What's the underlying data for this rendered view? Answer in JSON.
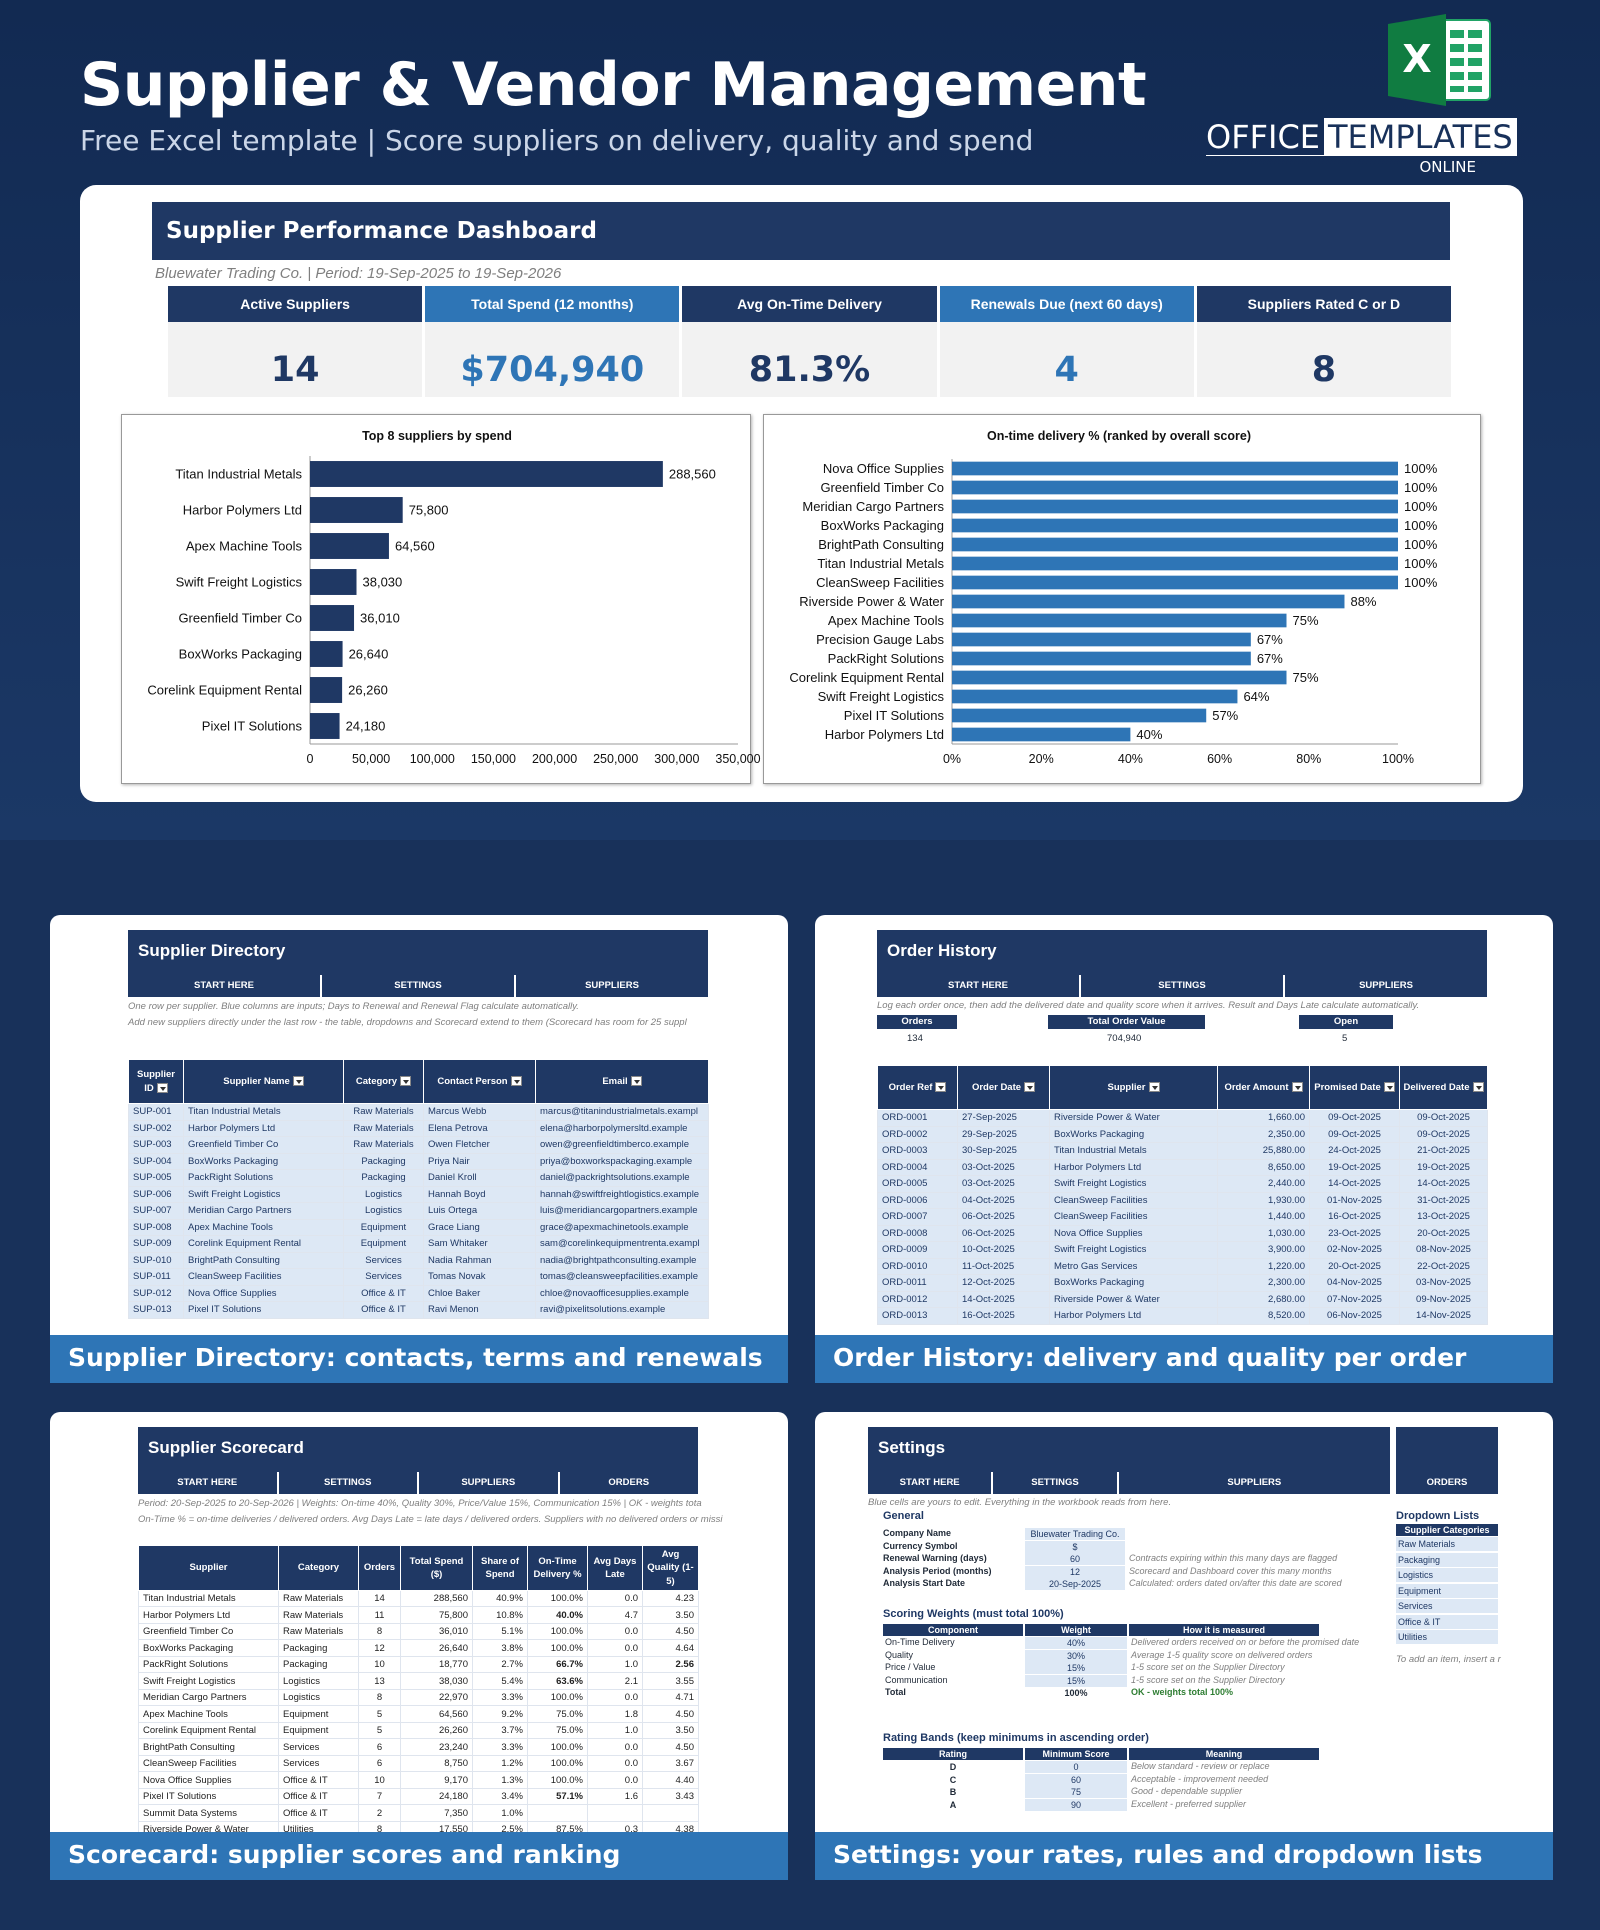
{
  "header": {
    "title": "Supplier & Vendor Management",
    "subtitle": "Free Excel template  |  Score suppliers on delivery, quality and spend",
    "logo_word1": "OFFICE",
    "logo_word2": "TEMPLATES",
    "logo_online": "ONLINE"
  },
  "dashboard": {
    "title": "Supplier Performance Dashboard",
    "subtitle": "Bluewater Trading Co.  |  Period: 19-Sep-2025 to 19-Sep-2026",
    "kpis": [
      {
        "label": "Active Suppliers",
        "value": "14"
      },
      {
        "label": "Total Spend (12 months)",
        "value": "$704,940"
      },
      {
        "label": "Avg On-Time Delivery",
        "value": "81.3%"
      },
      {
        "label": "Renewals Due (next 60 days)",
        "value": "4"
      },
      {
        "label": "Suppliers Rated C or D",
        "value": "8"
      }
    ]
  },
  "chart_data": [
    {
      "type": "bar",
      "orientation": "horizontal",
      "title": "Top 8 suppliers by spend",
      "categories": [
        "Titan Industrial Metals",
        "Harbor Polymers Ltd",
        "Apex Machine Tools",
        "Swift Freight Logistics",
        "Greenfield Timber Co",
        "BoxWorks Packaging",
        "Corelink Equipment Rental",
        "Pixel IT Solutions"
      ],
      "values": [
        288560,
        75800,
        64560,
        38030,
        36010,
        26640,
        26260,
        24180
      ],
      "value_labels": [
        "288,560",
        "75,800",
        "64,560",
        "38,030",
        "36,010",
        "26,640",
        "26,260",
        "24,180"
      ],
      "xlim": [
        0,
        350000
      ],
      "x_ticks": [
        "0",
        "50,000",
        "100,000",
        "150,000",
        "200,000",
        "250,000",
        "300,000",
        "350,000"
      ],
      "bar_color": "#1f3864",
      "grid": false
    },
    {
      "type": "bar",
      "orientation": "horizontal",
      "title": "On-time delivery % (ranked by overall score)",
      "categories": [
        "Nova Office Supplies",
        "Greenfield Timber Co",
        "Meridian Cargo Partners",
        "BoxWorks Packaging",
        "BrightPath Consulting",
        "Titan Industrial Metals",
        "CleanSweep Facilities",
        "Riverside Power & Water",
        "Apex Machine Tools",
        "Precision Gauge Labs",
        "PackRight Solutions",
        "Corelink Equipment Rental",
        "Swift Freight Logistics",
        "Pixel IT Solutions",
        "Harbor Polymers Ltd"
      ],
      "values": [
        100,
        100,
        100,
        100,
        100,
        100,
        100,
        88,
        75,
        67,
        67,
        75,
        64,
        57,
        40
      ],
      "value_labels": [
        "100%",
        "100%",
        "100%",
        "100%",
        "100%",
        "100%",
        "100%",
        "88%",
        "75%",
        "67%",
        "67%",
        "75%",
        "64%",
        "57%",
        "40%"
      ],
      "xlim": [
        0,
        100
      ],
      "x_ticks": [
        "0%",
        "20%",
        "40%",
        "60%",
        "80%",
        "100%"
      ],
      "bar_color": "#2e75b6",
      "grid": false
    }
  ],
  "directory": {
    "title": "Supplier Directory",
    "nav": [
      "START HERE",
      "SETTINGS",
      "SUPPLIERS"
    ],
    "note1": "One row per supplier. Blue columns are inputs; Days to Renewal and Renewal Flag calculate automatically.",
    "note2": "Add new suppliers directly under the last row - the table, dropdowns and Scorecard extend to them (Scorecard has room for 25 suppl",
    "columns": [
      "Supplier ID",
      "Supplier Name",
      "Category",
      "Contact Person",
      "Email"
    ],
    "rows": [
      [
        "SUP-001",
        "Titan Industrial Metals",
        "Raw Materials",
        "Marcus Webb",
        "marcus@titanindustrialmetals.exampl"
      ],
      [
        "SUP-002",
        "Harbor Polymers Ltd",
        "Raw Materials",
        "Elena Petrova",
        "elena@harborpolymersltd.example"
      ],
      [
        "SUP-003",
        "Greenfield Timber Co",
        "Raw Materials",
        "Owen Fletcher",
        "owen@greenfieldtimberco.example"
      ],
      [
        "SUP-004",
        "BoxWorks Packaging",
        "Packaging",
        "Priya Nair",
        "priya@boxworkspackaging.example"
      ],
      [
        "SUP-005",
        "PackRight Solutions",
        "Packaging",
        "Daniel Kroll",
        "daniel@packrightsolutions.example"
      ],
      [
        "SUP-006",
        "Swift Freight Logistics",
        "Logistics",
        "Hannah Boyd",
        "hannah@swiftfreightlogistics.example"
      ],
      [
        "SUP-007",
        "Meridian Cargo Partners",
        "Logistics",
        "Luis Ortega",
        "luis@meridiancargopartners.example"
      ],
      [
        "SUP-008",
        "Apex Machine Tools",
        "Equipment",
        "Grace Liang",
        "grace@apexmachinetools.example"
      ],
      [
        "SUP-009",
        "Corelink Equipment Rental",
        "Equipment",
        "Sam Whitaker",
        "sam@corelinkequipmentrenta.exampl"
      ],
      [
        "SUP-010",
        "BrightPath Consulting",
        "Services",
        "Nadia Rahman",
        "nadia@brightpathconsulting.example"
      ],
      [
        "SUP-011",
        "CleanSweep Facilities",
        "Services",
        "Tomas Novak",
        "tomas@cleansweepfacilities.example"
      ],
      [
        "SUP-012",
        "Nova Office Supplies",
        "Office & IT",
        "Chloe Baker",
        "chloe@novaofficesupplies.example"
      ],
      [
        "SUP-013",
        "Pixel IT Solutions",
        "Office & IT",
        "Ravi Menon",
        "ravi@pixelitsolutions.example"
      ]
    ],
    "caption": "Supplier Directory: contacts, terms and renewals"
  },
  "orders": {
    "title": "Order History",
    "nav": [
      "START HERE",
      "SETTINGS",
      "SUPPLIERS"
    ],
    "note": "Log each order once, then add the delivered date and quality score when it arrives. Result and Days Late calculate automatically.",
    "summary": [
      {
        "label": "Orders",
        "value": "134"
      },
      {
        "label": "Total Order Value",
        "value": "704,940"
      },
      {
        "label": "Open",
        "value": "5"
      }
    ],
    "columns": [
      "Order Ref",
      "Order Date",
      "Supplier",
      "Order Amount",
      "Promised Date",
      "Delivered Date"
    ],
    "rows": [
      [
        "ORD-0001",
        "27-Sep-2025",
        "Riverside Power & Water",
        "1,660.00",
        "09-Oct-2025",
        "09-Oct-2025"
      ],
      [
        "ORD-0002",
        "29-Sep-2025",
        "BoxWorks Packaging",
        "2,350.00",
        "09-Oct-2025",
        "09-Oct-2025"
      ],
      [
        "ORD-0003",
        "30-Sep-2025",
        "Titan Industrial Metals",
        "25,880.00",
        "24-Oct-2025",
        "21-Oct-2025"
      ],
      [
        "ORD-0004",
        "03-Oct-2025",
        "Harbor Polymers Ltd",
        "8,650.00",
        "19-Oct-2025",
        "19-Oct-2025"
      ],
      [
        "ORD-0005",
        "03-Oct-2025",
        "Swift Freight Logistics",
        "2,440.00",
        "14-Oct-2025",
        "14-Oct-2025"
      ],
      [
        "ORD-0006",
        "04-Oct-2025",
        "CleanSweep Facilities",
        "1,930.00",
        "01-Nov-2025",
        "31-Oct-2025"
      ],
      [
        "ORD-0007",
        "06-Oct-2025",
        "CleanSweep Facilities",
        "1,440.00",
        "16-Oct-2025",
        "13-Oct-2025"
      ],
      [
        "ORD-0008",
        "06-Oct-2025",
        "Nova Office Supplies",
        "1,030.00",
        "23-Oct-2025",
        "20-Oct-2025"
      ],
      [
        "ORD-0009",
        "10-Oct-2025",
        "Swift Freight Logistics",
        "3,900.00",
        "02-Nov-2025",
        "08-Nov-2025"
      ],
      [
        "ORD-0010",
        "11-Oct-2025",
        "Metro Gas Services",
        "1,220.00",
        "20-Oct-2025",
        "22-Oct-2025"
      ],
      [
        "ORD-0011",
        "12-Oct-2025",
        "BoxWorks Packaging",
        "2,300.00",
        "04-Nov-2025",
        "03-Nov-2025"
      ],
      [
        "ORD-0012",
        "14-Oct-2025",
        "Riverside Power & Water",
        "2,680.00",
        "07-Nov-2025",
        "09-Nov-2025"
      ],
      [
        "ORD-0013",
        "16-Oct-2025",
        "Harbor Polymers Ltd",
        "8,520.00",
        "06-Nov-2025",
        "14-Nov-2025"
      ]
    ],
    "caption": "Order History: delivery and quality per order"
  },
  "scorecard": {
    "title": "Supplier Scorecard",
    "nav": [
      "START HERE",
      "SETTINGS",
      "SUPPLIERS",
      "ORDERS"
    ],
    "note1": "Period: 20-Sep-2025 to 20-Sep-2026  |  Weights: On-time 40%, Quality 30%, Price/Value 15%, Communication 15%  |  OK - weights tota",
    "note2": "On-Time % = on-time deliveries / delivered orders. Avg Days Late = late days / delivered orders. Suppliers with no delivered orders or missi",
    "columns": [
      "Supplier",
      "Category",
      "Orders",
      "Total Spend ($)",
      "Share of Spend",
      "On-Time Delivery %",
      "Avg Days Late",
      "Avg Quality (1-5)"
    ],
    "rows": [
      [
        "Titan Industrial Metals",
        "Raw Materials",
        "14",
        "288,560",
        "40.9%",
        "100.0%",
        "0.0",
        "4.23"
      ],
      [
        "Harbor Polymers Ltd",
        "Raw Materials",
        "11",
        "75,800",
        "10.8%",
        "40.0%",
        "4.7",
        "3.50"
      ],
      [
        "Greenfield Timber Co",
        "Raw Materials",
        "8",
        "36,010",
        "5.1%",
        "100.0%",
        "0.0",
        "4.50"
      ],
      [
        "BoxWorks Packaging",
        "Packaging",
        "12",
        "26,640",
        "3.8%",
        "100.0%",
        "0.0",
        "4.64"
      ],
      [
        "PackRight Solutions",
        "Packaging",
        "10",
        "18,770",
        "2.7%",
        "66.7%",
        "1.0",
        "2.56"
      ],
      [
        "Swift Freight Logistics",
        "Logistics",
        "13",
        "38,030",
        "5.4%",
        "63.6%",
        "2.1",
        "3.55"
      ],
      [
        "Meridian Cargo Partners",
        "Logistics",
        "8",
        "22,970",
        "3.3%",
        "100.0%",
        "0.0",
        "4.71"
      ],
      [
        "Apex Machine Tools",
        "Equipment",
        "5",
        "64,560",
        "9.2%",
        "75.0%",
        "1.8",
        "4.50"
      ],
      [
        "Corelink Equipment Rental",
        "Equipment",
        "5",
        "26,260",
        "3.7%",
        "75.0%",
        "1.0",
        "3.50"
      ],
      [
        "BrightPath Consulting",
        "Services",
        "6",
        "23,240",
        "3.3%",
        "100.0%",
        "0.0",
        "4.50"
      ],
      [
        "CleanSweep Facilities",
        "Services",
        "6",
        "8,750",
        "1.2%",
        "100.0%",
        "0.0",
        "3.67"
      ],
      [
        "Nova Office Supplies",
        "Office & IT",
        "10",
        "9,170",
        "1.3%",
        "100.0%",
        "0.0",
        "4.40"
      ],
      [
        "Pixel IT Solutions",
        "Office & IT",
        "7",
        "24,180",
        "3.4%",
        "57.1%",
        "1.6",
        "3.43"
      ],
      [
        "Summit Data Systems",
        "Office & IT",
        "2",
        "7,350",
        "1.0%",
        "",
        "",
        " "
      ],
      [
        "Riverside Power & Water",
        "Utilities",
        "8",
        "17,550",
        "2.5%",
        "87.5%",
        "0.3",
        "4.38"
      ]
    ],
    "caption": "Scorecard: supplier scores and ranking"
  },
  "settings": {
    "title": "Settings",
    "nav": [
      "START HERE",
      "SETTINGS",
      "SUPPLIERS"
    ],
    "nav_orders": "ORDERS",
    "note": "Blue cells are yours to edit. Everything in the workbook reads from here.",
    "general_label": "General",
    "general": [
      {
        "label": "Company Name",
        "value": "Bluewater Trading Co.",
        "note": ""
      },
      {
        "label": "Currency Symbol",
        "value": "$",
        "note": ""
      },
      {
        "label": "Renewal Warning (days)",
        "value": "60",
        "note": "Contracts expiring within this many days are flagged"
      },
      {
        "label": "Analysis Period (months)",
        "value": "12",
        "note": "Scorecard and Dashboard cover this many months"
      },
      {
        "label": "Analysis Start Date",
        "value": "20-Sep-2025",
        "note": "Calculated: orders dated on/after this date are scored"
      }
    ],
    "weights_label": "Scoring Weights (must total 100%)",
    "weights_cols": [
      "Component",
      "Weight",
      "How it is measured"
    ],
    "weights": [
      [
        "On-Time Delivery",
        "40%",
        "Delivered orders received on or before the promised date"
      ],
      [
        "Quality",
        "30%",
        "Average 1-5 quality score on delivered orders"
      ],
      [
        "Price / Value",
        "15%",
        "1-5 score set on the Supplier Directory"
      ],
      [
        "Communication",
        "15%",
        "1-5 score set on the Supplier Directory"
      ],
      [
        "Total",
        "100%",
        "OK - weights total 100%"
      ]
    ],
    "bands_label": "Rating Bands (keep minimums in ascending order)",
    "bands_cols": [
      "Rating",
      "Minimum Score",
      "Meaning"
    ],
    "bands": [
      [
        "D",
        "0",
        "Below standard - review or replace"
      ],
      [
        "C",
        "60",
        "Acceptable - improvement needed"
      ],
      [
        "B",
        "75",
        "Good - dependable supplier"
      ],
      [
        "A",
        "90",
        "Excellent - preferred supplier"
      ]
    ],
    "dropdown_label": "Dropdown Lists",
    "dropdown_header": "Supplier Categories",
    "dropdown_items": [
      "Raw Materials",
      "Packaging",
      "Logistics",
      "Equipment",
      "Services",
      "Office & IT",
      "Utilities"
    ],
    "dropdown_hint": "To add an item, insert a r",
    "caption": "Settings: your rates, rules and dropdown lists"
  }
}
